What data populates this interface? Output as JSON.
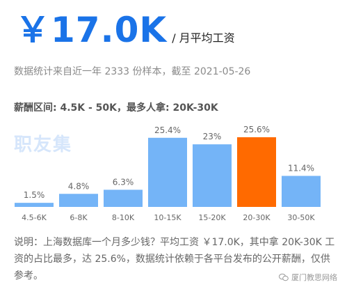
{
  "header": {
    "salary": "￥17.0K",
    "unit": "/ 月平均工资",
    "meta": "数据统计来自近一年 2333 份样本，截至 2021-05-26",
    "range": "薪酬区间: 4.5K - 50K，最多人拿: 20K-30K"
  },
  "watermark": "职友集",
  "colors": {
    "bar": "#74b4f7",
    "highlight": "#ff6a00",
    "accent": "#1a73e8"
  },
  "chart_data": {
    "type": "bar",
    "categories": [
      "4.5-6K",
      "6-8K",
      "8-10K",
      "10-15K",
      "15-20K",
      "20-30K",
      "30-50K"
    ],
    "values": [
      1.5,
      4.8,
      6.3,
      25.4,
      23,
      25.6,
      11.4
    ],
    "value_labels": [
      "1.5%",
      "4.8%",
      "6.3%",
      "25.4%",
      "23%",
      "25.6%",
      "11.4%"
    ],
    "highlight_category": "20-30K",
    "ylim": [
      0,
      25.6
    ],
    "grid": false
  },
  "note": "说明：上海数据库一个月多少钱？平均工资 ￥17.0K，其中拿 20K-30K 工资的占比最多，达 25.6%，数据统计依赖于各平台发布的公开薪酬，仅供参考。",
  "footer": {
    "brand": "厦门教思网络"
  }
}
